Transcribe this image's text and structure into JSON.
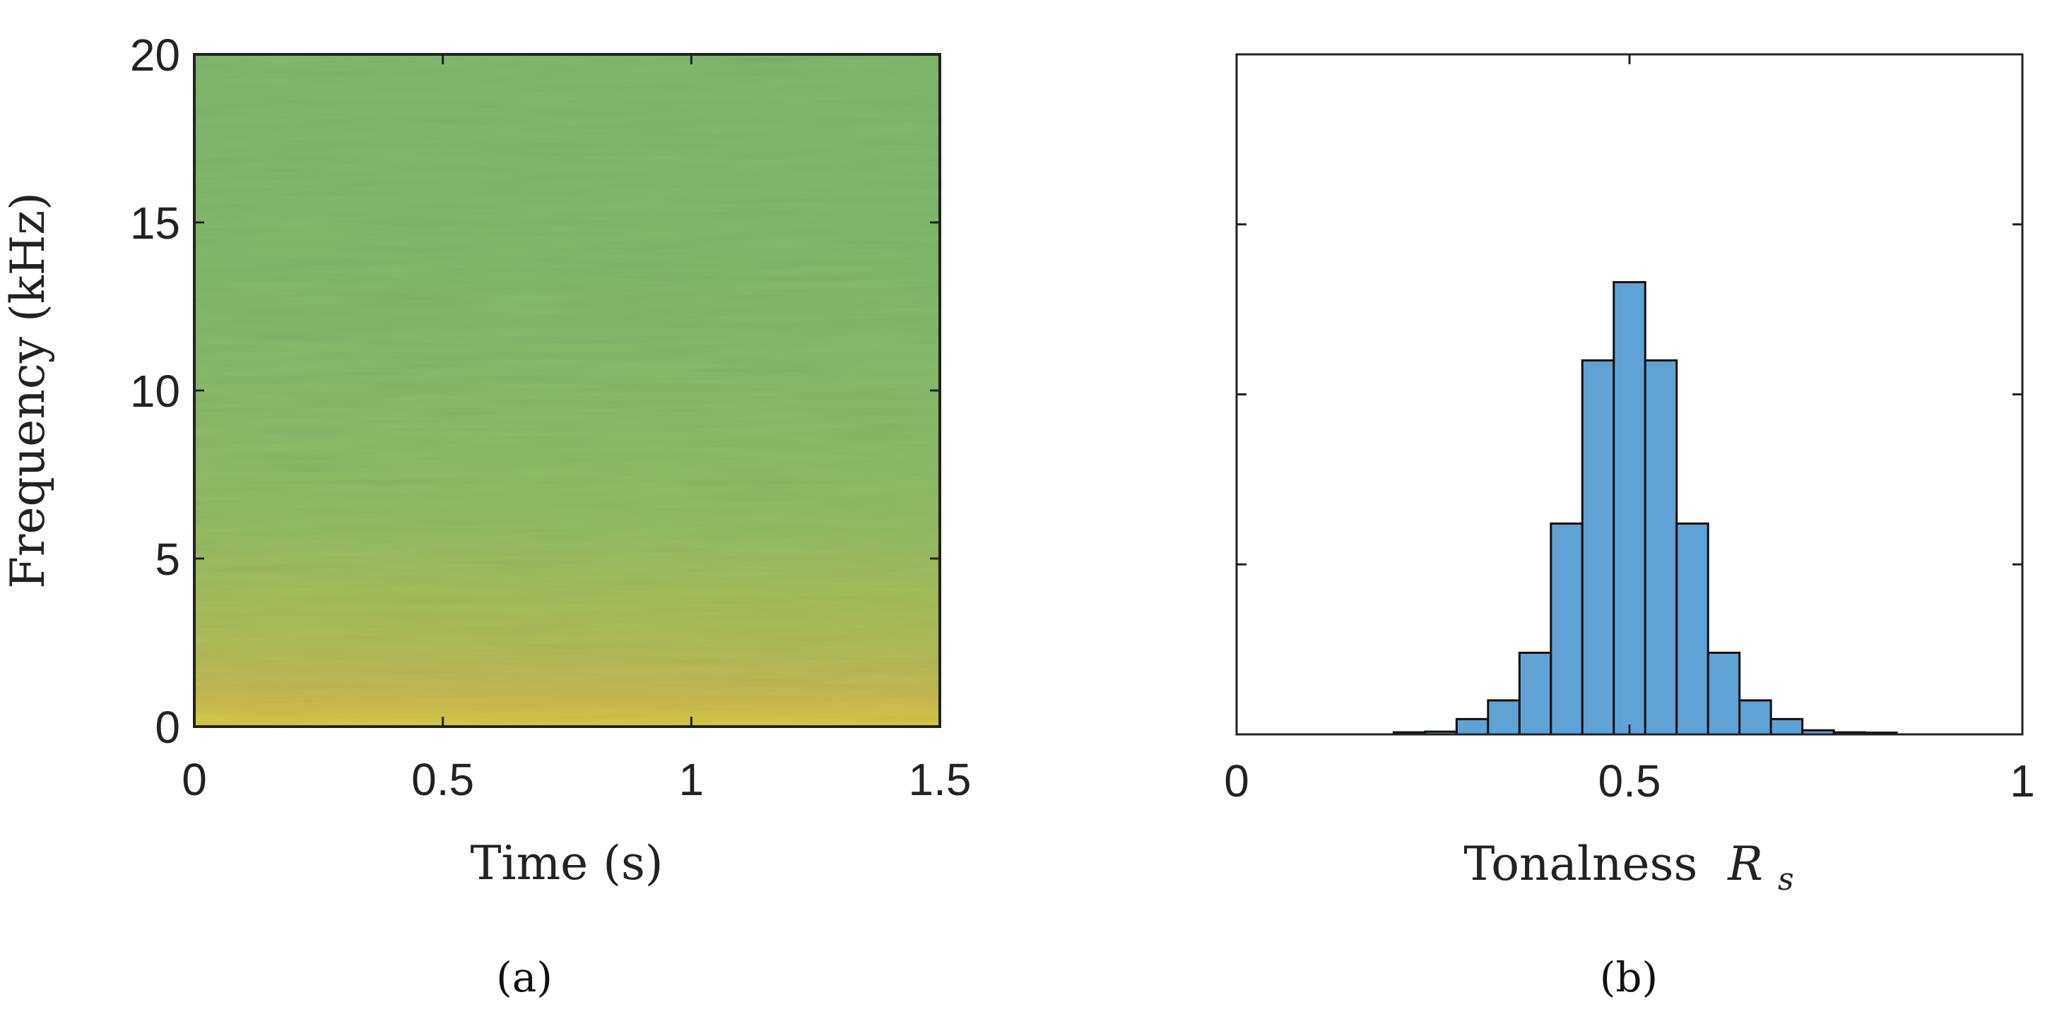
{
  "figure": {
    "panels": [
      "(a)",
      "(b)"
    ]
  },
  "chart_data": [
    {
      "type": "heatmap",
      "title": "",
      "xlabel": "Time (s)",
      "ylabel": "Frequency (kHz)",
      "xlim": [
        0,
        1.5
      ],
      "ylim": [
        0,
        20
      ],
      "xticks": [
        "0",
        "0.5",
        "1",
        "1.5"
      ],
      "yticks": [
        "0",
        "5",
        "10",
        "15",
        "20"
      ],
      "xtick_values": [
        0,
        0.5,
        1,
        1.5
      ],
      "ytick_values": [
        0,
        5,
        10,
        15,
        20
      ],
      "description_levels": {
        "frequency_bands_khz": [
          0,
          0.5,
          1,
          2,
          3,
          4,
          5,
          6,
          8,
          10,
          12,
          14,
          16,
          18,
          20
        ],
        "mean_intensity": [
          1.0,
          0.9,
          0.78,
          0.68,
          0.62,
          0.58,
          0.54,
          0.5,
          0.47,
          0.44,
          0.42,
          0.41,
          0.4,
          0.4,
          0.4
        ]
      },
      "colormap": [
        "#1f9aa6",
        "#3aaa8c",
        "#79b870",
        "#b5bc55",
        "#e2b743",
        "#f7d23a"
      ],
      "grid": false
    },
    {
      "type": "bar",
      "title": "",
      "xlabel": "Tonalness",
      "xlabel_symbol": "R",
      "xlabel_subscript": "s",
      "xlim": [
        0,
        1
      ],
      "xticks": [
        "0",
        "0.5",
        "1"
      ],
      "xtick_values": [
        0,
        0.5,
        1
      ],
      "ylim": [
        0,
        2
      ],
      "ytick_values": [
        0,
        0.5,
        1,
        1.5,
        2
      ],
      "bin_edges": [
        0.2,
        0.24,
        0.28,
        0.32,
        0.36,
        0.4,
        0.44,
        0.48,
        0.52,
        0.56,
        0.6,
        0.64,
        0.68,
        0.72,
        0.76,
        0.8,
        0.84
      ],
      "values": [
        0.006,
        0.008,
        0.045,
        0.1,
        0.24,
        0.62,
        1.1,
        1.33,
        1.1,
        0.62,
        0.24,
        0.1,
        0.045,
        0.012,
        0.006,
        0.005
      ],
      "bar_color": "#5fa3d6",
      "edge_color": "#111111",
      "grid": false
    }
  ]
}
